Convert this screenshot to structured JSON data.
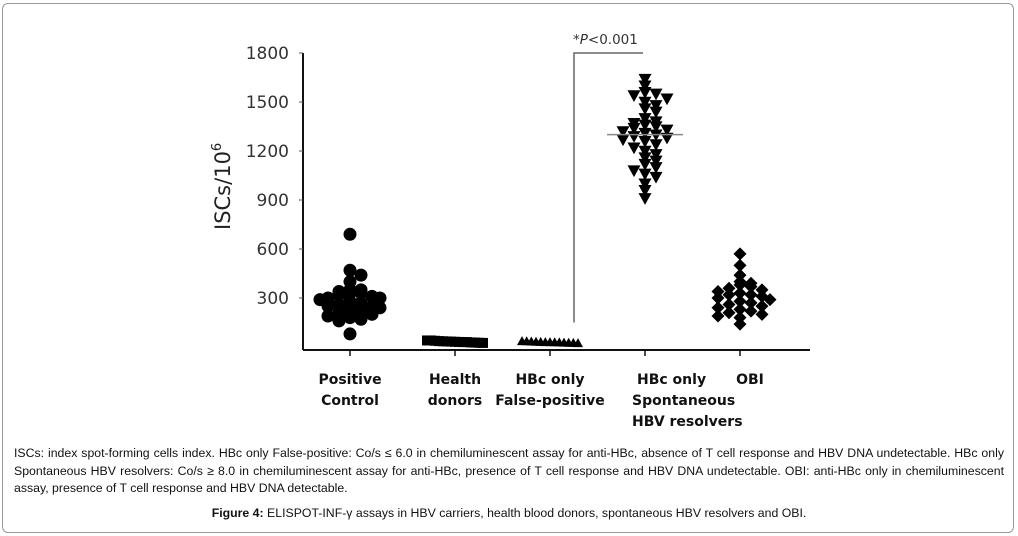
{
  "chart_data": {
    "type": "scatter",
    "subtype": "dot-plot",
    "title": "",
    "ylabel": "ISCs/10^6",
    "ylabel_parts": {
      "base": "ISCs/10",
      "sup": "6"
    },
    "xlabel": "",
    "ylim": [
      0,
      1800
    ],
    "yticks": [
      300,
      600,
      900,
      1200,
      1500,
      1800
    ],
    "grid": false,
    "legend": "none",
    "categories": [
      {
        "lines": [
          "Positive",
          "Control"
        ]
      },
      {
        "lines": [
          "Health",
          "donors"
        ]
      },
      {
        "lines": [
          "HBc only",
          "False-positive"
        ]
      },
      {
        "lines": [
          "HBc only",
          "Spontaneous",
          "HBV resolvers"
        ]
      },
      {
        "lines": [
          "OBI"
        ]
      }
    ],
    "series": [
      {
        "name": "Positive Control",
        "marker": "circle",
        "values": [
          690,
          470,
          440,
          400,
          350,
          350,
          340,
          330,
          330,
          320,
          310,
          300,
          300,
          290,
          280,
          270,
          260,
          250,
          250,
          240,
          230,
          220,
          210,
          200,
          190,
          180,
          170,
          160,
          80
        ]
      },
      {
        "name": "Health donors",
        "marker": "square",
        "values": [
          40,
          40,
          38,
          36,
          35,
          34,
          33,
          32,
          31,
          30,
          30,
          28,
          27,
          26,
          25
        ]
      },
      {
        "name": "HBc only False-positive",
        "marker": "triangle-up",
        "values": [
          36,
          35,
          34,
          32,
          31,
          30,
          30,
          29,
          28,
          27,
          26,
          25,
          24
        ]
      },
      {
        "name": "HBc only Spontaneous HBV resolvers",
        "marker": "triangle-down",
        "values": [
          1640,
          1600,
          1560,
          1550,
          1540,
          1520,
          1500,
          1480,
          1460,
          1440,
          1400,
          1380,
          1370,
          1360,
          1350,
          1340,
          1330,
          1320,
          1310,
          1300,
          1290,
          1280,
          1270,
          1260,
          1240,
          1220,
          1200,
          1180,
          1160,
          1140,
          1120,
          1100,
          1080,
          1060,
          1040,
          1000,
          960,
          910
        ]
      },
      {
        "name": "OBI",
        "marker": "diamond",
        "values": [
          570,
          500,
          440,
          400,
          390,
          380,
          370,
          360,
          350,
          340,
          330,
          320,
          320,
          310,
          300,
          290,
          280,
          270,
          260,
          250,
          240,
          230,
          220,
          210,
          200,
          190,
          180,
          140
        ]
      }
    ],
    "means": [
      {
        "category": "HBc only Spontaneous HBV resolvers",
        "value": 1300
      }
    ],
    "annotations": [
      {
        "text_prefix": "*",
        "text_italic": "P",
        "text_suffix": "<0.001",
        "from_category": 2,
        "to_category": 3
      }
    ]
  },
  "caption": {
    "paragraph": "ISCs: index spot-forming cells index. HBc only False-positive: Co/s ≤ 6.0 in chemiluminescent assay for anti-HBc, absence of T cell response and HBV DNA undetectable. HBc only Spontaneous HBV resolvers: Co/s ≥ 8.0 in chemiluminescent assay for anti-HBc, presence of T cell response and HBV DNA undetectable. OBI: anti-HBc only in chemiluminescent assay, presence of T cell response and HBV DNA detectable.",
    "figure_label": "Figure 4:",
    "figure_title": " ELISPOT-INF-γ assays in HBV carriers, health blood donors, spontaneous HBV resolvers and OBI."
  }
}
